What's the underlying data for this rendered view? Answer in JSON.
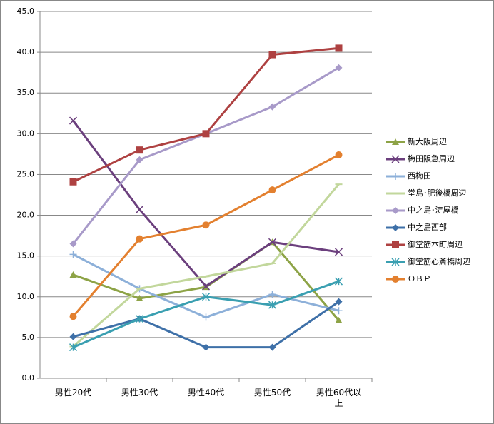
{
  "chart_data": {
    "type": "line",
    "categories": [
      "男性20代",
      "男性30代",
      "男性40代",
      "男性50代",
      "男性60代以上"
    ],
    "ylim": [
      0,
      45
    ],
    "yticks": [
      {
        "value": 0,
        "label": "0.0"
      },
      {
        "value": 5,
        "label": "5.0"
      },
      {
        "value": 10,
        "label": "10.0"
      },
      {
        "value": 15,
        "label": "15.0"
      },
      {
        "value": 20,
        "label": "20.0"
      },
      {
        "value": 25,
        "label": "25.0"
      },
      {
        "value": 30,
        "label": "30.0"
      },
      {
        "value": 35,
        "label": "35.0"
      },
      {
        "value": 40,
        "label": "40.0"
      },
      {
        "value": 45,
        "label": "45.0"
      }
    ],
    "grid": true,
    "legend": "right",
    "series": [
      {
        "name": "新大阪周辺",
        "color": "#8da346",
        "marker": "triangle",
        "values": [
          12.7,
          9.8,
          11.2,
          16.7,
          7.1
        ]
      },
      {
        "name": "梅田阪急周辺",
        "color": "#6b3f7d",
        "marker": "x",
        "values": [
          31.6,
          20.7,
          11.3,
          16.7,
          15.5
        ]
      },
      {
        "name": "西梅田",
        "color": "#8db0d9",
        "marker": "plus",
        "values": [
          15.2,
          11.0,
          7.5,
          10.3,
          8.3
        ]
      },
      {
        "name": "堂島･肥後橋周辺",
        "color": "#c2d79c",
        "marker": "dash",
        "values": [
          3.9,
          11.0,
          12.5,
          14.1,
          23.8
        ]
      },
      {
        "name": "中之島･淀屋橋",
        "color": "#a89ac9",
        "marker": "diamond",
        "values": [
          16.5,
          26.8,
          30.0,
          33.3,
          38.1
        ]
      },
      {
        "name": "中之島西部",
        "color": "#3e70a8",
        "marker": "diamond",
        "values": [
          5.1,
          7.3,
          3.8,
          3.8,
          9.4
        ]
      },
      {
        "name": "御堂筋本町周辺",
        "color": "#ae4141",
        "marker": "square",
        "values": [
          24.1,
          28.0,
          30.0,
          39.7,
          40.5
        ]
      },
      {
        "name": "御堂筋心斎橋周辺",
        "color": "#3a9fb1",
        "marker": "star",
        "values": [
          3.8,
          7.3,
          10.0,
          9.0,
          11.9
        ]
      },
      {
        "name": "ＯＢＰ",
        "color": "#e3802f",
        "marker": "circle",
        "values": [
          7.6,
          17.1,
          18.8,
          23.1,
          27.4
        ]
      }
    ]
  }
}
